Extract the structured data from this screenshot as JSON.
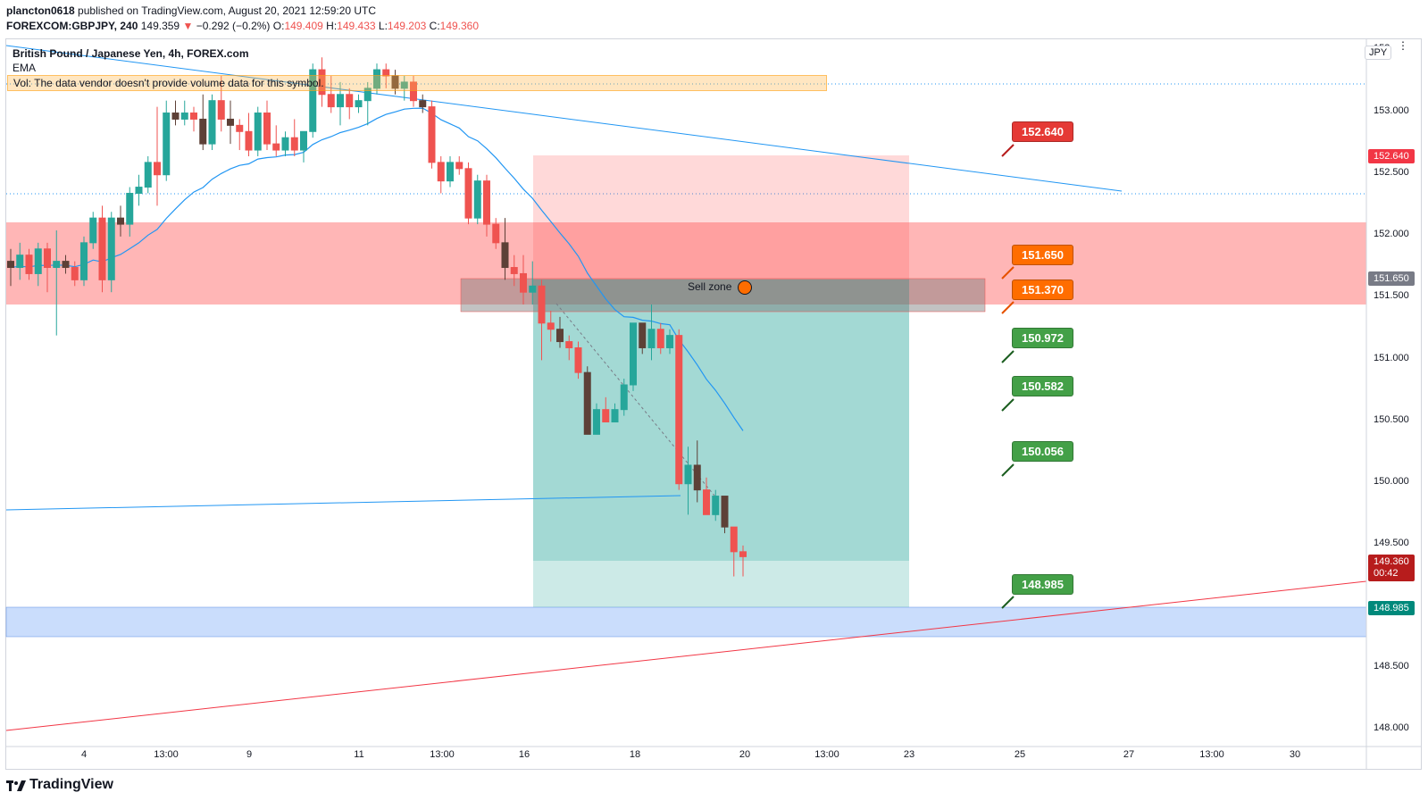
{
  "header": {
    "author": "plancton0618",
    "published_text": "published on TradingView.com, August 20, 2021 12:59:20 UTC",
    "symbol": "FOREXCOM:GBPJPY, 240",
    "last": "149.359",
    "change_arrow": "▼",
    "change": "−0.292 (−0.2%)",
    "o_label": "O:",
    "o_value": "149.409",
    "h_label": "H:",
    "h_value": "149.433",
    "l_label": "L:",
    "l_value": "149.203",
    "c_label": "C:",
    "c_value": "149.360"
  },
  "legend": {
    "title": "British Pound / Japanese Yen, 4h, FOREX.com",
    "indicator": "EMA",
    "vol_note": "Vol: The data vendor doesn't provide volume data for this symbol."
  },
  "currency_button": "JPY",
  "top_right_label": "153",
  "y_axis": [
    "153.000",
    "152.500",
    "152.000",
    "151.500",
    "151.000",
    "150.500",
    "150.000",
    "149.500",
    "148.500",
    "148.000"
  ],
  "x_axis": [
    "4",
    "13:00",
    "9",
    "11",
    "13:00",
    "16",
    "18",
    "20",
    "13:00",
    "23",
    "25",
    "27",
    "13:00",
    "30"
  ],
  "price_boxes": {
    "resistance": "152.640",
    "sell": "151.650",
    "current_price": "149.360",
    "countdown": "00:42",
    "target": "148.985"
  },
  "callouts": [
    {
      "label": "152.640",
      "color": "#e53935"
    },
    {
      "label": "151.650",
      "color": "#ff6d00"
    },
    {
      "label": "151.370",
      "color": "#ff6d00"
    },
    {
      "label": "150.972",
      "color": "#43a047"
    },
    {
      "label": "150.582",
      "color": "#43a047"
    },
    {
      "label": "150.056",
      "color": "#43a047"
    },
    {
      "label": "148.985",
      "color": "#43a047"
    }
  ],
  "sell_zone_label": "Sell zone",
  "footer_brand": "TradingView",
  "colors": {
    "up": "#26a69a",
    "down": "#ef5350",
    "candle_dark": "#5d4037",
    "ema": "#2196f3"
  },
  "chart_data": {
    "type": "candlestick",
    "title": "British Pound / Japanese Yen, 4h, FOREX.com",
    "ylim": [
      147.9,
      153.5
    ],
    "candles": [
      {
        "o": 151.75,
        "h": 151.85,
        "l": 151.55,
        "c": 151.7
      },
      {
        "o": 151.7,
        "h": 151.9,
        "l": 151.6,
        "c": 151.8
      },
      {
        "o": 151.8,
        "h": 151.85,
        "l": 151.6,
        "c": 151.65
      },
      {
        "o": 151.65,
        "h": 151.9,
        "l": 151.55,
        "c": 151.85
      },
      {
        "o": 151.85,
        "h": 151.9,
        "l": 151.5,
        "c": 151.7
      },
      {
        "o": 151.7,
        "h": 152.0,
        "l": 151.15,
        "c": 151.75
      },
      {
        "o": 151.75,
        "h": 151.8,
        "l": 151.65,
        "c": 151.7
      },
      {
        "o": 151.7,
        "h": 151.75,
        "l": 151.55,
        "c": 151.6
      },
      {
        "o": 151.6,
        "h": 151.95,
        "l": 151.55,
        "c": 151.9
      },
      {
        "o": 151.9,
        "h": 152.15,
        "l": 151.85,
        "c": 152.1
      },
      {
        "o": 152.1,
        "h": 152.2,
        "l": 151.5,
        "c": 151.6
      },
      {
        "o": 151.6,
        "h": 152.15,
        "l": 151.5,
        "c": 152.1
      },
      {
        "o": 152.1,
        "h": 152.2,
        "l": 151.95,
        "c": 152.05
      },
      {
        "o": 152.05,
        "h": 152.35,
        "l": 151.95,
        "c": 152.3
      },
      {
        "o": 152.3,
        "h": 152.45,
        "l": 152.2,
        "c": 152.35
      },
      {
        "o": 152.35,
        "h": 152.6,
        "l": 152.3,
        "c": 152.55
      },
      {
        "o": 152.55,
        "h": 153.0,
        "l": 152.2,
        "c": 152.45
      },
      {
        "o": 152.45,
        "h": 153.05,
        "l": 152.4,
        "c": 152.95
      },
      {
        "o": 152.95,
        "h": 153.05,
        "l": 152.85,
        "c": 152.9
      },
      {
        "o": 152.9,
        "h": 153.05,
        "l": 152.85,
        "c": 152.95
      },
      {
        "o": 152.95,
        "h": 153.0,
        "l": 152.8,
        "c": 152.9
      },
      {
        "o": 152.9,
        "h": 153.1,
        "l": 152.65,
        "c": 152.7
      },
      {
        "o": 152.7,
        "h": 153.1,
        "l": 152.65,
        "c": 153.05
      },
      {
        "o": 153.05,
        "h": 153.25,
        "l": 152.8,
        "c": 152.9
      },
      {
        "o": 152.9,
        "h": 153.05,
        "l": 152.7,
        "c": 152.85
      },
      {
        "o": 152.85,
        "h": 152.9,
        "l": 152.65,
        "c": 152.8
      },
      {
        "o": 152.8,
        "h": 152.95,
        "l": 152.6,
        "c": 152.65
      },
      {
        "o": 152.65,
        "h": 153.0,
        "l": 152.6,
        "c": 152.95
      },
      {
        "o": 152.95,
        "h": 153.05,
        "l": 152.65,
        "c": 152.7
      },
      {
        "o": 152.7,
        "h": 152.85,
        "l": 152.6,
        "c": 152.65
      },
      {
        "o": 152.65,
        "h": 152.8,
        "l": 152.6,
        "c": 152.75
      },
      {
        "o": 152.75,
        "h": 152.9,
        "l": 152.6,
        "c": 152.65
      },
      {
        "o": 152.65,
        "h": 152.8,
        "l": 152.55,
        "c": 152.8
      },
      {
        "o": 152.8,
        "h": 153.35,
        "l": 152.75,
        "c": 153.3
      },
      {
        "o": 153.3,
        "h": 153.4,
        "l": 153.0,
        "c": 153.1
      },
      {
        "o": 153.1,
        "h": 153.25,
        "l": 152.95,
        "c": 153.0
      },
      {
        "o": 153.0,
        "h": 153.2,
        "l": 152.85,
        "c": 153.1
      },
      {
        "o": 153.1,
        "h": 153.15,
        "l": 152.9,
        "c": 153.0
      },
      {
        "o": 153.0,
        "h": 153.1,
        "l": 152.95,
        "c": 153.05
      },
      {
        "o": 153.05,
        "h": 153.2,
        "l": 152.85,
        "c": 153.15
      },
      {
        "o": 153.15,
        "h": 153.35,
        "l": 153.1,
        "c": 153.3
      },
      {
        "o": 153.3,
        "h": 153.35,
        "l": 153.15,
        "c": 153.25
      },
      {
        "o": 153.25,
        "h": 153.3,
        "l": 153.1,
        "c": 153.15
      },
      {
        "o": 153.15,
        "h": 153.25,
        "l": 153.05,
        "c": 153.2
      },
      {
        "o": 153.2,
        "h": 153.25,
        "l": 153.0,
        "c": 153.05
      },
      {
        "o": 153.05,
        "h": 153.1,
        "l": 152.95,
        "c": 153.0
      },
      {
        "o": 153.0,
        "h": 153.05,
        "l": 152.5,
        "c": 152.55
      },
      {
        "o": 152.55,
        "h": 152.6,
        "l": 152.3,
        "c": 152.4
      },
      {
        "o": 152.4,
        "h": 152.6,
        "l": 152.35,
        "c": 152.55
      },
      {
        "o": 152.55,
        "h": 152.6,
        "l": 152.45,
        "c": 152.5
      },
      {
        "o": 152.5,
        "h": 152.55,
        "l": 152.05,
        "c": 152.1
      },
      {
        "o": 152.1,
        "h": 152.45,
        "l": 152.05,
        "c": 152.4
      },
      {
        "o": 152.4,
        "h": 152.45,
        "l": 151.95,
        "c": 152.05
      },
      {
        "o": 152.05,
        "h": 152.1,
        "l": 151.85,
        "c": 151.9
      },
      {
        "o": 151.9,
        "h": 152.1,
        "l": 151.6,
        "c": 151.7
      },
      {
        "o": 151.7,
        "h": 151.8,
        "l": 151.55,
        "c": 151.65
      },
      {
        "o": 151.65,
        "h": 151.8,
        "l": 151.4,
        "c": 151.5
      },
      {
        "o": 151.5,
        "h": 151.75,
        "l": 151.4,
        "c": 151.55
      },
      {
        "o": 151.55,
        "h": 151.6,
        "l": 150.95,
        "c": 151.25
      },
      {
        "o": 151.25,
        "h": 151.35,
        "l": 151.1,
        "c": 151.2
      },
      {
        "o": 151.2,
        "h": 151.3,
        "l": 151.05,
        "c": 151.1
      },
      {
        "o": 151.1,
        "h": 151.15,
        "l": 150.95,
        "c": 151.05
      },
      {
        "o": 151.05,
        "h": 151.1,
        "l": 150.8,
        "c": 150.85
      },
      {
        "o": 150.85,
        "h": 150.9,
        "l": 150.35,
        "c": 150.35
      },
      {
        "o": 150.35,
        "h": 150.6,
        "l": 150.35,
        "c": 150.55
      },
      {
        "o": 150.55,
        "h": 150.65,
        "l": 150.45,
        "c": 150.45
      },
      {
        "o": 150.45,
        "h": 150.6,
        "l": 150.45,
        "c": 150.55
      },
      {
        "o": 150.55,
        "h": 150.8,
        "l": 150.5,
        "c": 150.75
      },
      {
        "o": 150.75,
        "h": 151.25,
        "l": 150.7,
        "c": 151.25
      },
      {
        "o": 151.25,
        "h": 151.25,
        "l": 151.0,
        "c": 151.05
      },
      {
        "o": 151.05,
        "h": 151.4,
        "l": 150.95,
        "c": 151.2
      },
      {
        "o": 151.2,
        "h": 151.25,
        "l": 151.0,
        "c": 151.05
      },
      {
        "o": 151.05,
        "h": 151.2,
        "l": 151.0,
        "c": 151.15
      },
      {
        "o": 151.15,
        "h": 151.2,
        "l": 149.9,
        "c": 149.95
      },
      {
        "o": 149.95,
        "h": 150.25,
        "l": 149.7,
        "c": 150.1
      },
      {
        "o": 150.1,
        "h": 150.3,
        "l": 149.8,
        "c": 149.9
      },
      {
        "o": 149.9,
        "h": 150.0,
        "l": 149.7,
        "c": 149.7
      },
      {
        "o": 149.7,
        "h": 149.9,
        "l": 149.65,
        "c": 149.85
      },
      {
        "o": 149.85,
        "h": 149.85,
        "l": 149.55,
        "c": 149.6
      },
      {
        "o": 149.6,
        "h": 149.6,
        "l": 149.2,
        "c": 149.4
      },
      {
        "o": 149.4,
        "h": 149.45,
        "l": 149.2,
        "c": 149.36
      }
    ]
  }
}
